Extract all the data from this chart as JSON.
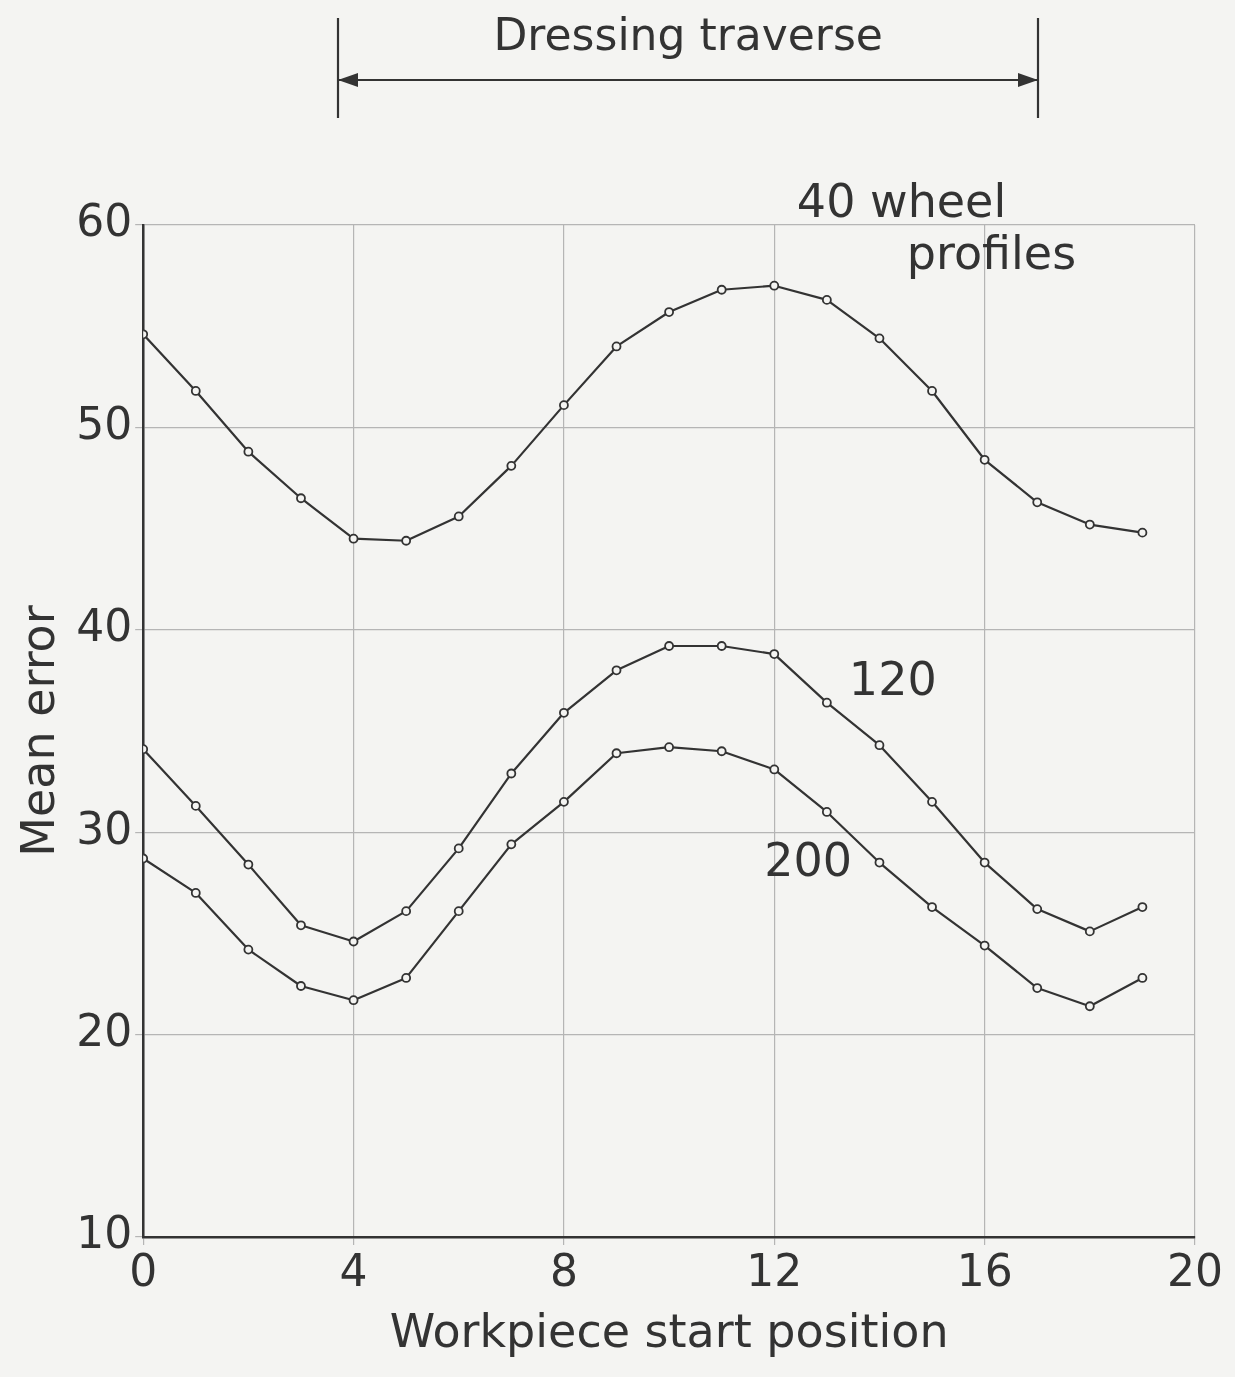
{
  "chart_data": {
    "type": "line",
    "xlabel": "Workpiece start position",
    "ylabel": "Mean error",
    "x": [
      0,
      1,
      2,
      3,
      4,
      5,
      6,
      7,
      8,
      9,
      10,
      11,
      12,
      13,
      14,
      15,
      16,
      17,
      18,
      19
    ],
    "series": [
      {
        "name": "40 wheel profiles",
        "color": "#333333",
        "values": [
          54.6,
          51.8,
          48.8,
          46.5,
          44.5,
          44.4,
          45.6,
          48.1,
          51.1,
          54.0,
          55.7,
          56.8,
          57.0,
          56.3,
          54.4,
          51.8,
          48.4,
          46.3,
          45.2,
          44.8
        ]
      },
      {
        "name": "120",
        "color": "#333333",
        "values": [
          34.1,
          31.3,
          28.4,
          25.4,
          24.6,
          26.1,
          29.2,
          32.9,
          35.9,
          38.0,
          39.2,
          39.2,
          38.8,
          36.4,
          34.3,
          31.5,
          28.5,
          26.2,
          25.1,
          26.3
        ]
      },
      {
        "name": "200",
        "color": "#333333",
        "values": [
          28.7,
          27.0,
          24.2,
          22.4,
          21.7,
          22.8,
          26.1,
          29.4,
          31.5,
          33.9,
          34.2,
          34.0,
          33.1,
          31.0,
          28.5,
          26.3,
          24.4,
          22.3,
          21.4,
          22.8
        ]
      }
    ],
    "xlim": [
      0,
      20
    ],
    "ylim": [
      10,
      60
    ],
    "xticks": [
      0,
      4,
      8,
      12,
      16,
      20
    ],
    "yticks": [
      10,
      20,
      30,
      40,
      50,
      60
    ],
    "grid": true,
    "marker": "circle",
    "line_style": "solid",
    "annotations": [
      "Dressing traverse"
    ]
  }
}
